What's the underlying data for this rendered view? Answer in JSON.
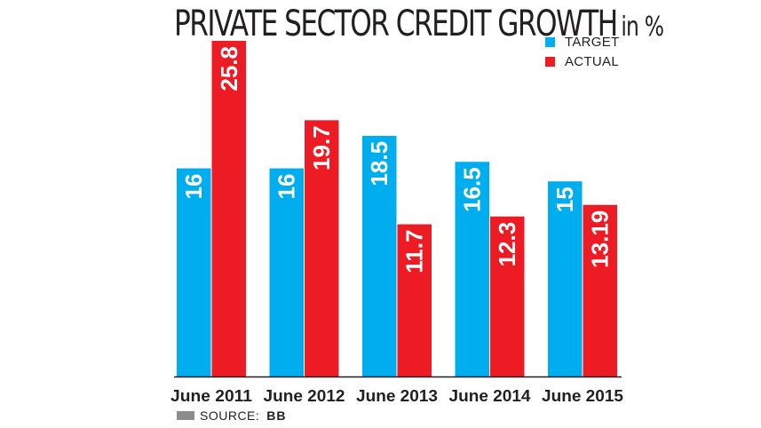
{
  "header": {
    "title": "PRIVATE SECTOR CREDIT GROWTH",
    "unit": "in %"
  },
  "legend": [
    {
      "label": "TARGET",
      "color": "#00aeef"
    },
    {
      "label": "ACTUAL",
      "color": "#ed1c24"
    }
  ],
  "source": {
    "label": "SOURCE:",
    "value": "BB"
  },
  "chart_data": {
    "type": "bar",
    "title": "PRIVATE SECTOR CREDIT GROWTH in %",
    "categories": [
      "June 2011",
      "June 2012",
      "June 2013",
      "June 2014",
      "June 2015"
    ],
    "series": [
      {
        "name": "TARGET",
        "color": "#00aeef",
        "values": [
          16,
          16,
          18.5,
          16.5,
          15
        ],
        "labels": [
          "16",
          "16",
          "18.5",
          "16.5",
          "15"
        ]
      },
      {
        "name": "ACTUAL",
        "color": "#ed1c24",
        "values": [
          25.8,
          19.7,
          11.7,
          12.3,
          13.19
        ],
        "labels": [
          "25.8",
          "19.7",
          "11.7",
          "12.3",
          "13.19"
        ]
      }
    ],
    "ylim": [
      0,
      25.8
    ],
    "grid": false,
    "legend_position": "top-right",
    "data_labels": "inside-top-rotated"
  }
}
